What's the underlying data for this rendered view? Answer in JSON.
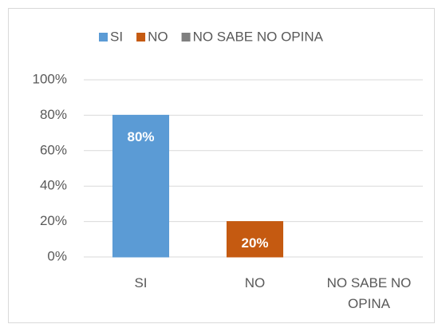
{
  "chart_data": {
    "type": "bar",
    "categories": [
      "SI",
      "NO",
      "NO SABE NO OPINA"
    ],
    "values": [
      80,
      20,
      0
    ],
    "value_labels": [
      "80%",
      "20%",
      null
    ],
    "colors": [
      "#5b9bd5",
      "#c55a11",
      "#7f7f7f"
    ],
    "ylim": [
      0,
      100
    ],
    "yticks": [
      {
        "value": 0,
        "label": "0%"
      },
      {
        "value": 20,
        "label": "20%"
      },
      {
        "value": 40,
        "label": "40%"
      },
      {
        "value": 60,
        "label": "60%"
      },
      {
        "value": 80,
        "label": "80%"
      },
      {
        "value": 100,
        "label": "100%"
      }
    ],
    "grid": true,
    "legend": "top"
  }
}
